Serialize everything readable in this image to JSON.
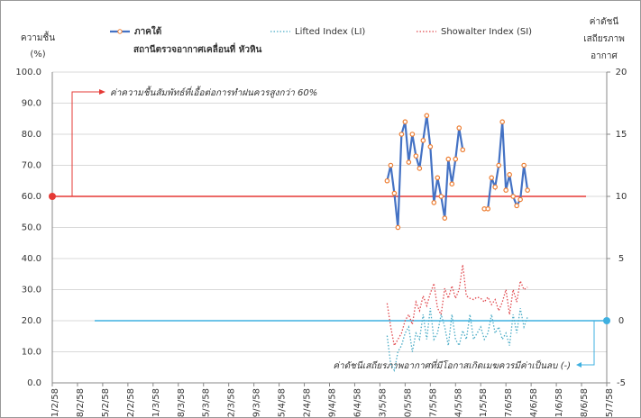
{
  "chart_data": {
    "type": "line",
    "title": "สถานีตรวจอากาศเคลื่อนที่ หัวหิน",
    "y_label": [
      "ความชื้น",
      "(%)"
    ],
    "y2_label": [
      "ค่าดัชนี",
      "เสถียรภาพ",
      "อากาศ"
    ],
    "ylim": [
      0,
      100
    ],
    "yticks": [
      {
        "value": 0,
        "label": "0.0"
      },
      {
        "value": 10,
        "label": "10.0"
      },
      {
        "value": 20,
        "label": "20.0"
      },
      {
        "value": 30,
        "label": "30.0"
      },
      {
        "value": 40,
        "label": "40.0"
      },
      {
        "value": 50,
        "label": "50.0"
      },
      {
        "value": 60,
        "label": "60.0"
      },
      {
        "value": 70,
        "label": "70.0"
      },
      {
        "value": 80,
        "label": "80.0"
      },
      {
        "value": 90,
        "label": "90.0"
      },
      {
        "value": 100,
        "label": "100.0"
      }
    ],
    "y2lim": [
      -5,
      20
    ],
    "y2ticks": [
      -5,
      0,
      5,
      10,
      15,
      20
    ],
    "xlim": [
      "1/2/58",
      "5/7/58"
    ],
    "xticks": [
      "1/2/58",
      "8/2/58",
      "15/2/58",
      "22/2/58",
      "1/3/58",
      "8/3/58",
      "15/3/58",
      "22/3/58",
      "29/3/58",
      "5/4/58",
      "12/4/58",
      "19/4/58",
      "26/4/58",
      "3/5/58",
      "10/5/58",
      "17/5/58",
      "24/5/58",
      "31/5/58",
      "7/6/58",
      "14/6/58",
      "21/6/58",
      "28/6/58",
      "5/7/58"
    ],
    "grid": true,
    "x": [
      "5/5/58",
      "6/5/58",
      "7/5/58",
      "8/5/58",
      "9/5/58",
      "10/5/58",
      "11/5/58",
      "12/5/58",
      "13/5/58",
      "14/5/58",
      "15/5/58",
      "16/5/58",
      "17/5/58",
      "18/5/58",
      "19/5/58",
      "20/5/58",
      "21/5/58",
      "22/5/58",
      "23/5/58",
      "24/5/58",
      "25/5/58",
      "26/5/58",
      "27/5/58",
      "28/5/58",
      "29/5/58",
      "30/5/58",
      "31/5/58",
      "1/6/58",
      "2/6/58",
      "3/6/58",
      "4/6/58",
      "5/6/58",
      "6/6/58",
      "7/6/58",
      "8/6/58",
      "9/6/58",
      "10/6/58",
      "11/6/58",
      "12/6/58",
      "13/6/58"
    ],
    "series": [
      {
        "name": "ภาคใต้",
        "color": "#4472c4",
        "marker_color": "#ed7d31",
        "style": "solid",
        "axis": "y",
        "values": [
          65,
          70,
          61,
          50,
          80,
          84,
          71,
          80,
          73,
          69,
          78,
          86,
          76,
          58,
          66,
          60,
          53,
          72,
          64,
          72,
          82,
          75,
          null,
          null,
          null,
          null,
          null,
          56,
          56,
          66,
          63,
          70,
          84,
          62,
          67,
          60,
          57,
          59,
          70,
          62
        ]
      },
      {
        "name": "Lifted Index (LI)",
        "color": "#4bacc6",
        "style": "dotted",
        "axis": "y2",
        "values": [
          -1.2,
          -3.5,
          -4,
          -2.5,
          -2,
          -1,
          -0.5,
          -2.5,
          -1,
          -1.5,
          0.5,
          -1.5,
          1,
          -1.5,
          -1,
          0.5,
          -0.5,
          -2,
          0.5,
          -1.5,
          -2,
          -0.8,
          -1.5,
          0.5,
          -1.5,
          -1,
          -0.5,
          -1.5,
          -1,
          0.5,
          -1,
          -0.5,
          -1.5,
          -1,
          -2,
          0.5,
          -1,
          1,
          -0.5,
          0.3
        ]
      },
      {
        "name": "Showalter Index (SI)",
        "color": "#e0474c",
        "style": "dotted",
        "axis": "y2",
        "values": [
          1.4,
          -0.5,
          -2,
          -1.5,
          -1,
          0,
          0.5,
          -0.3,
          1.5,
          0.8,
          2,
          1.2,
          2.2,
          3,
          1,
          0.5,
          2.6,
          1.8,
          2.8,
          1.8,
          2.5,
          4.5,
          2,
          1.8,
          1.7,
          1.9,
          1.8,
          1.5,
          1.9,
          1.3,
          1.7,
          0.8,
          1.5,
          2.5,
          0.5,
          2.5,
          1.5,
          3.2,
          2.5,
          2.7
        ]
      }
    ],
    "thresholds": [
      {
        "value": 60,
        "axis": "y",
        "color": "#e53935",
        "label": "ค่าความชื้นสัมพัทธ์ที่เอื้อต่อการทำฝนควรสูงกว่า 60%"
      },
      {
        "value": 0,
        "axis": "y2",
        "color": "#3fb0e0",
        "label": "ค่าดัชนีเสถียรภาพอากาศที่มีโอกาสเกิดเมฆควรมีค่าเป็นลบ (-)"
      }
    ]
  }
}
